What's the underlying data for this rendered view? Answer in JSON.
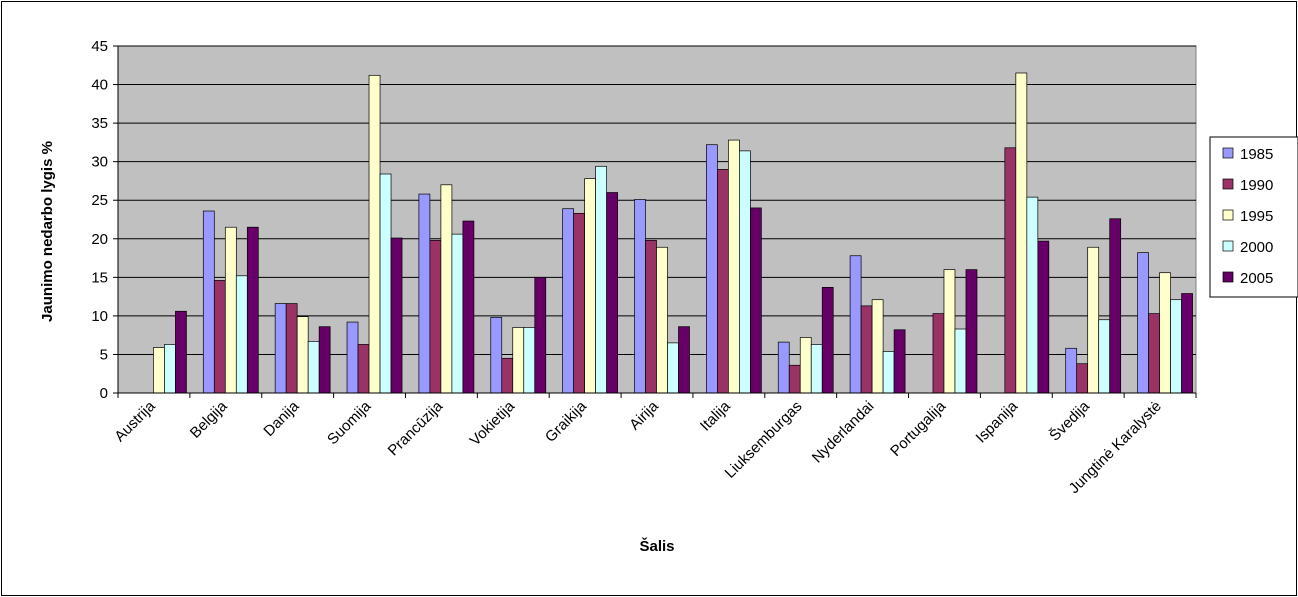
{
  "chart_data": {
    "type": "bar",
    "xlabel": "Šalis",
    "ylabel": "Jaunimo nedarbo lygis %",
    "ylim": [
      0,
      45
    ],
    "yticks": [
      0,
      5,
      10,
      15,
      20,
      25,
      30,
      35,
      40,
      45
    ],
    "grid": true,
    "legend_position": "right",
    "plot_background": "#c0c0c0",
    "categories": [
      "Austrija",
      "Belgija",
      "Danija",
      "Suomija",
      "Prancūzija",
      "Vokietija",
      "Graikija",
      "Airija",
      "Italija",
      "Liuksemburgas",
      "Nyderlandai",
      "Portugalija",
      "Ispanija",
      "Švedija",
      "Jungtinė Karalystė"
    ],
    "series": [
      {
        "name": "1985",
        "color": "#9999ff",
        "values": [
          null,
          23.6,
          11.6,
          9.2,
          25.8,
          9.8,
          23.9,
          25.1,
          32.2,
          6.6,
          17.8,
          null,
          null,
          5.8,
          18.2
        ]
      },
      {
        "name": "1990",
        "color": "#993366",
        "values": [
          null,
          14.6,
          11.6,
          6.3,
          19.8,
          4.5,
          23.3,
          19.8,
          29.0,
          3.6,
          11.3,
          10.3,
          31.8,
          3.8,
          10.3
        ]
      },
      {
        "name": "1995",
        "color": "#ffffcc",
        "values": [
          5.9,
          21.5,
          9.9,
          41.2,
          27.0,
          8.5,
          27.8,
          18.9,
          32.8,
          7.2,
          12.1,
          16.0,
          41.5,
          18.9,
          15.6
        ]
      },
      {
        "name": "2000",
        "color": "#ccffff",
        "values": [
          6.3,
          15.2,
          6.7,
          28.4,
          20.6,
          8.5,
          29.4,
          6.5,
          31.4,
          6.3,
          5.4,
          8.3,
          25.4,
          9.5,
          12.1
        ]
      },
      {
        "name": "2005",
        "color": "#660066",
        "values": [
          10.6,
          21.5,
          8.6,
          20.1,
          22.3,
          15.0,
          26.0,
          8.6,
          24.0,
          13.7,
          8.2,
          16.0,
          19.7,
          22.6,
          12.9
        ]
      }
    ]
  }
}
